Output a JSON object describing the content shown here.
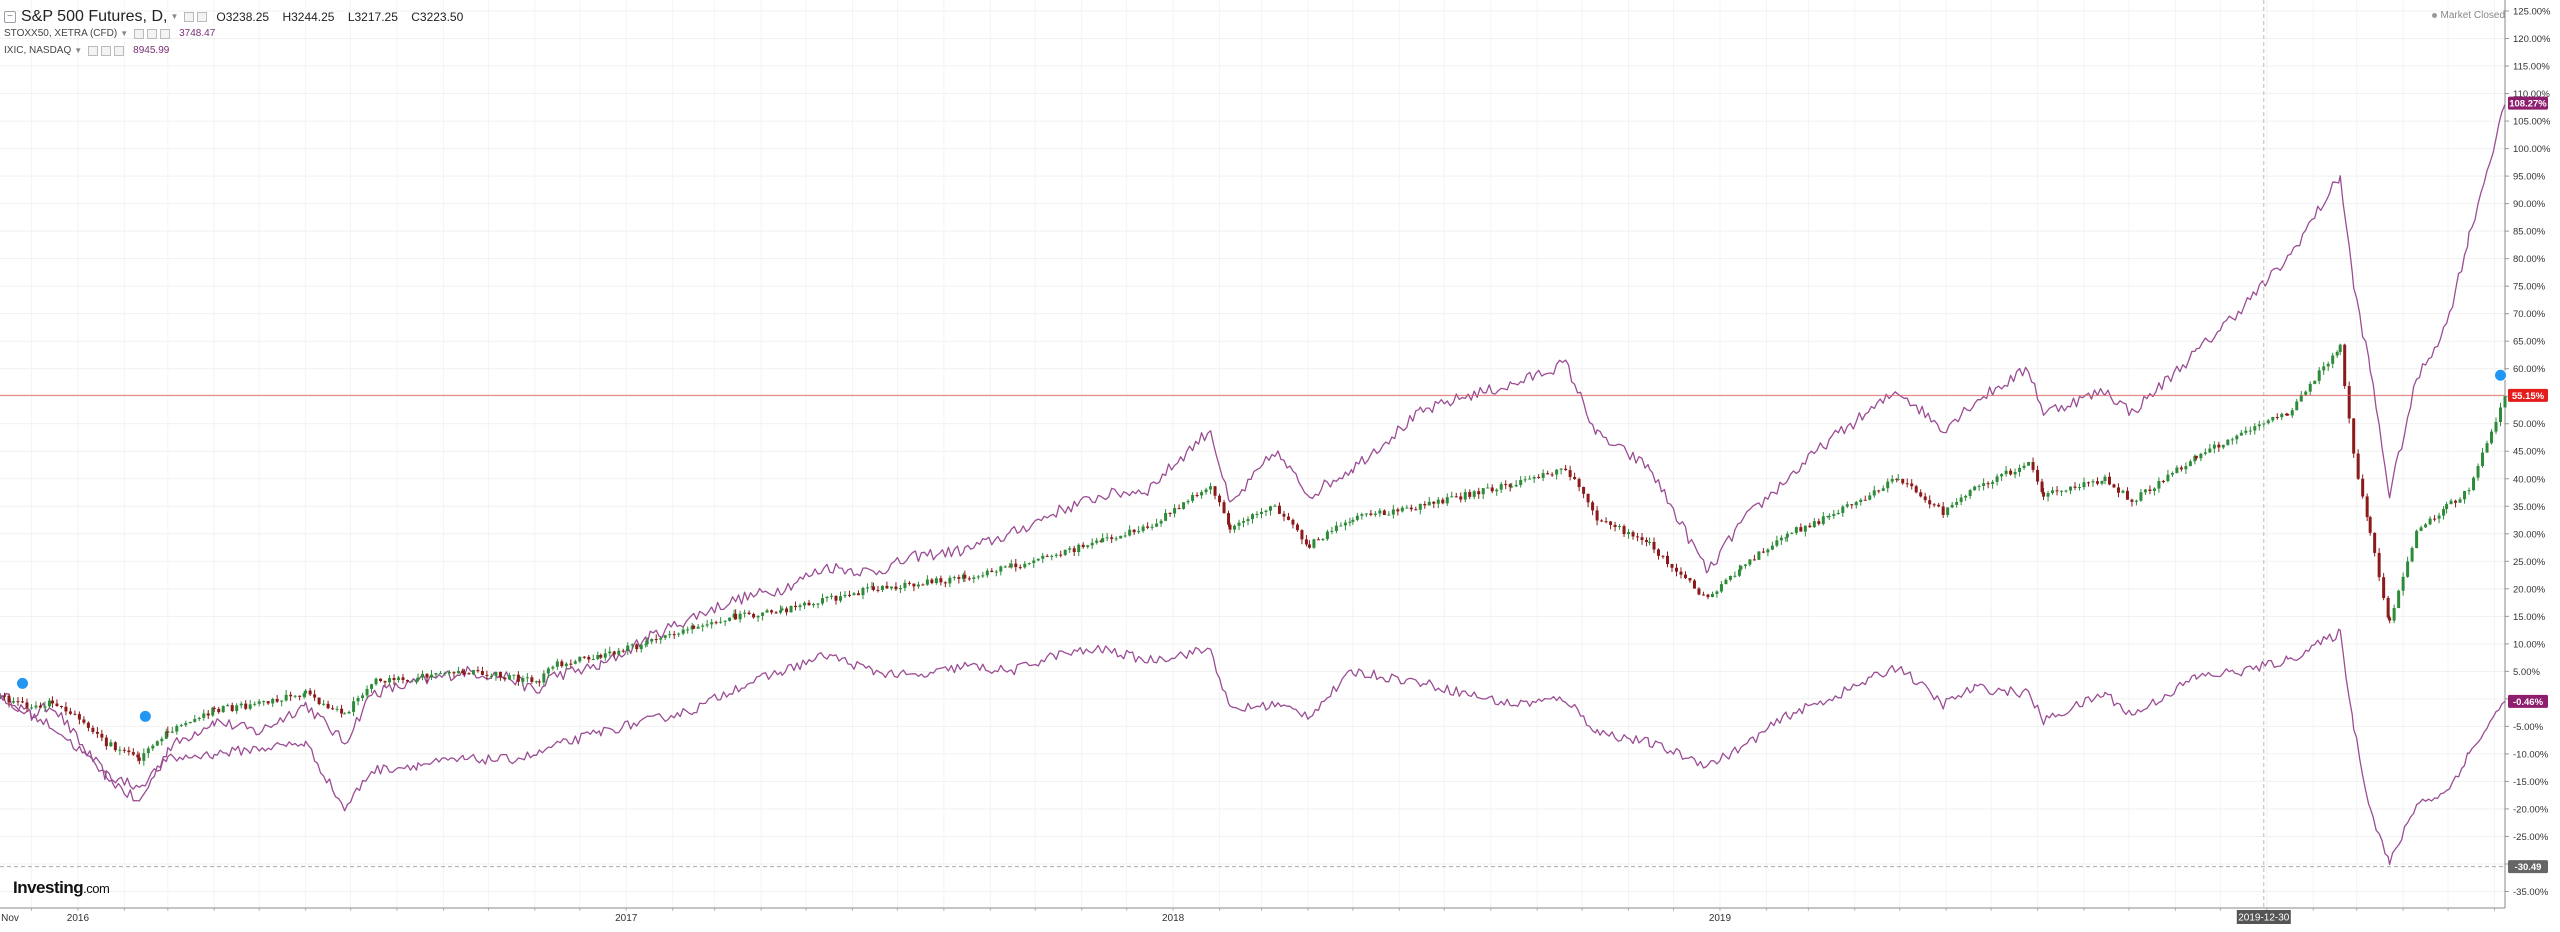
{
  "legend": {
    "main_symbol": "S&P 500 Futures, D,",
    "open": "O3238.25",
    "high": "H3244.25",
    "low": "L3217.25",
    "close": "C3223.50",
    "series2_symbol": "STOXX50, XETRA (CFD)",
    "series2_value": "3748.47",
    "series3_symbol": "IXIC, NASDAQ",
    "series3_value": "8945.99"
  },
  "market_status": "Market Closed",
  "logo": {
    "main": "Investing",
    "suffix": ".com"
  },
  "colors": {
    "compare_line": "#9b4d94",
    "candle_up": "#2e8b3a",
    "candle_down": "#8b1a1a",
    "price_line": "#e05b5b",
    "label_purple": "#8e1f6e",
    "label_red": "#e51c1c",
    "label_gray": "#666666",
    "date_highlight": "#555555"
  },
  "chart_data": {
    "type": "line",
    "title": "S&P 500 Futures, D,",
    "ylabel": "",
    "xlabel": "",
    "y_unit": "%",
    "ylim": [
      -38,
      127
    ],
    "xlim": [
      "2015-11-10",
      "2020-06-08"
    ],
    "grid": true,
    "y_ticks": [
      "125.00%",
      "120.00%",
      "115.00%",
      "110.00%",
      "105.00%",
      "100.00%",
      "95.00%",
      "90.00%",
      "85.00%",
      "80.00%",
      "75.00%",
      "70.00%",
      "65.00%",
      "60.00%",
      "55.00%",
      "50.00%",
      "45.00%",
      "40.00%",
      "35.00%",
      "30.00%",
      "25.00%",
      "20.00%",
      "15.00%",
      "10.00%",
      "5.00%",
      "0.00%",
      "-5.00%",
      "-10.00%",
      "-15.00%",
      "-20.00%",
      "-25.00%",
      "-30.00%",
      "-35.00%"
    ],
    "x_ticks": [
      {
        "date": "2015-11-01",
        "label": "Nov"
      },
      {
        "date": "2016-01-01",
        "label": "2016"
      },
      {
        "date": "2017-01-01",
        "label": "2017"
      },
      {
        "date": "2018-01-01",
        "label": "2018"
      },
      {
        "date": "2019-01-01",
        "label": "2019"
      }
    ],
    "crosshair": {
      "date": "2019-12-30",
      "label": "2019-12-30"
    },
    "price_line": {
      "value": 55.15,
      "label": "55.15%"
    },
    "last_labels": [
      {
        "series": "nasdaq",
        "value": 108.27,
        "label": "108.27%"
      },
      {
        "series": "sp500",
        "value": 55.15,
        "label": "55.15%"
      },
      {
        "series": "stoxx50",
        "value": -0.46,
        "label": "-0.46%"
      },
      {
        "series": "cursor",
        "value": -30.49,
        "label": "-30.49"
      }
    ],
    "sp500": {
      "dates": [
        "2015-11-10",
        "2015-12-01",
        "2015-12-15",
        "2016-01-05",
        "2016-01-20",
        "2016-02-11",
        "2016-03-01",
        "2016-04-01",
        "2016-05-01",
        "2016-06-01",
        "2016-06-27",
        "2016-07-15",
        "2016-08-15",
        "2016-09-15",
        "2016-10-15",
        "2016-11-04",
        "2016-11-10",
        "2016-12-15",
        "2017-01-15",
        "2017-02-15",
        "2017-03-15",
        "2017-04-15",
        "2017-05-15",
        "2017-06-15",
        "2017-07-15",
        "2017-08-15",
        "2017-09-15",
        "2017-10-15",
        "2017-11-15",
        "2017-12-15",
        "2018-01-26",
        "2018-02-08",
        "2018-03-10",
        "2018-04-02",
        "2018-05-01",
        "2018-06-15",
        "2018-07-15",
        "2018-08-15",
        "2018-09-20",
        "2018-10-11",
        "2018-11-15",
        "2018-12-24",
        "2019-01-15",
        "2019-02-15",
        "2019-03-15",
        "2019-04-30",
        "2019-05-30",
        "2019-06-20",
        "2019-07-26",
        "2019-08-05",
        "2019-09-15",
        "2019-10-03",
        "2019-11-15",
        "2019-12-15",
        "2020-01-15",
        "2020-02-19",
        "2020-02-28",
        "2020-03-10",
        "2020-03-23",
        "2020-04-10",
        "2020-04-30",
        "2020-05-15",
        "2020-06-08"
      ],
      "values": [
        0.5,
        -1.5,
        -0.5,
        -4,
        -8,
        -11,
        -6,
        -2,
        -1,
        1,
        -3,
        3,
        4,
        5,
        4,
        3,
        6,
        8,
        10,
        13,
        15,
        16,
        18,
        20,
        21,
        22,
        24,
        26,
        29,
        31,
        39,
        31,
        35,
        28,
        33,
        35,
        37,
        39,
        42,
        33,
        28,
        18,
        24,
        30,
        33,
        40,
        34,
        38,
        43,
        37,
        40,
        36,
        44,
        48,
        52,
        64,
        44,
        30,
        14,
        30,
        35,
        38,
        55
      ]
    },
    "nasdaq": {
      "dates": [
        "2015-11-10",
        "2015-12-01",
        "2015-12-15",
        "2016-01-05",
        "2016-01-20",
        "2016-02-11",
        "2016-03-01",
        "2016-04-01",
        "2016-05-01",
        "2016-06-01",
        "2016-06-27",
        "2016-07-15",
        "2016-08-15",
        "2016-09-15",
        "2016-10-15",
        "2016-11-04",
        "2016-11-10",
        "2016-12-15",
        "2017-01-15",
        "2017-02-15",
        "2017-03-15",
        "2017-04-15",
        "2017-05-15",
        "2017-06-15",
        "2017-07-15",
        "2017-08-15",
        "2017-09-15",
        "2017-10-15",
        "2017-11-15",
        "2017-12-15",
        "2018-01-26",
        "2018-02-08",
        "2018-03-10",
        "2018-04-02",
        "2018-05-01",
        "2018-06-15",
        "2018-07-15",
        "2018-08-15",
        "2018-09-20",
        "2018-10-11",
        "2018-11-15",
        "2018-12-24",
        "2019-01-15",
        "2019-02-15",
        "2019-03-15",
        "2019-04-30",
        "2019-05-30",
        "2019-06-20",
        "2019-07-26",
        "2019-08-05",
        "2019-09-15",
        "2019-10-03",
        "2019-11-15",
        "2019-12-15",
        "2020-01-15",
        "2020-02-19",
        "2020-02-28",
        "2020-03-10",
        "2020-03-23",
        "2020-04-10",
        "2020-04-30",
        "2020-05-15",
        "2020-06-08"
      ],
      "values": [
        1,
        -3,
        -1,
        -9,
        -14,
        -19,
        -9,
        -4,
        -6,
        -1,
        -8,
        1,
        3,
        5,
        4,
        1,
        4,
        6,
        11,
        15,
        18,
        20,
        24,
        23,
        26,
        27,
        30,
        34,
        37,
        38,
        49,
        35,
        45,
        37,
        42,
        52,
        55,
        57,
        61,
        48,
        42,
        23,
        32,
        40,
        47,
        56,
        49,
        54,
        60,
        52,
        56,
        52,
        63,
        71,
        80,
        95,
        75,
        60,
        37,
        58,
        68,
        84,
        108
      ]
    },
    "stoxx50": {
      "dates": [
        "2015-11-10",
        "2015-12-01",
        "2015-12-15",
        "2016-01-05",
        "2016-01-20",
        "2016-02-11",
        "2016-03-01",
        "2016-04-01",
        "2016-05-01",
        "2016-06-01",
        "2016-06-27",
        "2016-07-15",
        "2016-08-15",
        "2016-09-15",
        "2016-10-15",
        "2016-11-04",
        "2016-11-10",
        "2016-12-15",
        "2017-01-15",
        "2017-02-15",
        "2017-03-15",
        "2017-04-15",
        "2017-05-15",
        "2017-06-15",
        "2017-07-15",
        "2017-08-15",
        "2017-09-15",
        "2017-10-15",
        "2017-11-15",
        "2017-12-15",
        "2018-01-26",
        "2018-02-08",
        "2018-03-10",
        "2018-04-02",
        "2018-05-01",
        "2018-06-15",
        "2018-07-15",
        "2018-08-15",
        "2018-09-20",
        "2018-10-11",
        "2018-11-15",
        "2018-12-24",
        "2019-01-15",
        "2019-02-15",
        "2019-03-15",
        "2019-04-30",
        "2019-05-30",
        "2019-06-20",
        "2019-07-26",
        "2019-08-05",
        "2019-09-15",
        "2019-10-03",
        "2019-11-15",
        "2019-12-15",
        "2020-01-15",
        "2020-02-19",
        "2020-02-28",
        "2020-03-10",
        "2020-03-23",
        "2020-04-10",
        "2020-04-30",
        "2020-05-15",
        "2020-06-08"
      ],
      "values": [
        0,
        -3,
        -5,
        -10,
        -14,
        -16,
        -11,
        -10,
        -9,
        -8,
        -20,
        -13,
        -12,
        -11,
        -11,
        -10,
        -9,
        -6,
        -4,
        -2,
        2,
        5,
        8,
        5,
        4,
        6,
        5,
        8,
        9,
        7,
        9,
        -2,
        -1,
        -3,
        5,
        3,
        1,
        -1,
        0,
        -6,
        -8,
        -12,
        -9,
        -3,
        0,
        6,
        -1,
        2,
        1,
        -4,
        1,
        -3,
        4,
        5,
        7,
        12,
        -5,
        -20,
        -30,
        -19,
        -17,
        -10,
        -0.46
      ]
    }
  }
}
